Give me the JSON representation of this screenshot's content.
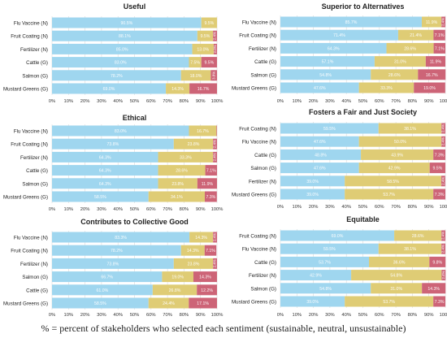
{
  "caption": "% = percent of stakeholders who selected each sentiment (sustainable, neutral, unsustainable)",
  "colors": {
    "sustainable": "#9fd6ef",
    "neutral": "#dfcc75",
    "unsustainable": "#cd6477"
  },
  "chart_data": [
    {
      "type": "bar",
      "orientation": "horizontal",
      "stacked": true,
      "title": "Useful",
      "categories": [
        "Flu Vaccine (N)",
        "Fruit Coating (N)",
        "Fertilizer (N)",
        "Cattle (G)",
        "Salmon (G)",
        "Mustard Greens (G)"
      ],
      "series": [
        {
          "values": [
            90.5,
            88.1,
            85.0,
            83.0,
            78.2,
            69.0
          ]
        },
        {
          "values": [
            9.5,
            9.5,
            13.0,
            7.5,
            18.0,
            14.3
          ]
        },
        {
          "values": [
            0,
            2.4,
            2.0,
            9.5,
            3.8,
            16.7
          ]
        }
      ],
      "segment_labels": [
        [
          "90.5%",
          "9.5%",
          ""
        ],
        [
          "88.1%",
          "9.5%",
          "2.4%"
        ],
        [
          "85.0%",
          "13.0%",
          "2.0%"
        ],
        [
          "83.0%",
          "7.5%",
          "9.5%"
        ],
        [
          "78.2%",
          "18.0%",
          "3.8%"
        ],
        [
          "69.0%",
          "14.3%",
          "16.7%"
        ]
      ],
      "xlim": [
        0,
        100
      ],
      "xticks": [
        "0%",
        "10%",
        "20%",
        "30%",
        "40%",
        "50%",
        "60%",
        "70%",
        "80%",
        "90%",
        "100%"
      ]
    },
    {
      "type": "bar",
      "orientation": "horizontal",
      "stacked": true,
      "title": "Superior to Alternatives",
      "categories": [
        "Flu Vaccine (N)",
        "Fruit Coating (N)",
        "Fertilizer (N)",
        "Cattle (G)",
        "Salmon (G)",
        "Mustard Greens (G)"
      ],
      "series": [
        {
          "values": [
            85.7,
            71.4,
            64.3,
            57.1,
            54.8,
            47.6
          ]
        },
        {
          "values": [
            11.9,
            21.4,
            28.6,
            31.0,
            28.6,
            33.3
          ]
        },
        {
          "values": [
            2.4,
            7.1,
            7.1,
            11.9,
            16.7,
            19.0
          ]
        }
      ],
      "segment_labels": [
        [
          "85.7%",
          "11.9%",
          "2.4%"
        ],
        [
          "71.4%",
          "21.4%",
          "7.1%"
        ],
        [
          "64.3%",
          "28.6%",
          "7.1%"
        ],
        [
          "57.1%",
          "31.0%",
          "11.9%"
        ],
        [
          "54.8%",
          "28.6%",
          "16.7%"
        ],
        [
          "47.6%",
          "33.3%",
          "19.0%"
        ]
      ],
      "xlim": [
        0,
        100
      ],
      "xticks": [
        "0%",
        "10%",
        "20%",
        "30%",
        "40%",
        "50%",
        "60%",
        "70%",
        "80%",
        "90%",
        "100%"
      ]
    },
    {
      "type": "bar",
      "orientation": "horizontal",
      "stacked": true,
      "title": "Ethical",
      "categories": [
        "Flu Vaccine (N)",
        "Fruit Coating (N)",
        "Fertilizer (N)",
        "Cattle (G)",
        "Salmon (G)",
        "Mustard Greens (G)"
      ],
      "series": [
        {
          "values": [
            83.0,
            73.8,
            64.3,
            64.3,
            64.3,
            58.5
          ]
        },
        {
          "values": [
            16.7,
            23.8,
            33.3,
            28.6,
            23.8,
            34.1
          ]
        },
        {
          "values": [
            0.3,
            2.4,
            2.4,
            7.1,
            11.9,
            7.3
          ]
        }
      ],
      "segment_labels": [
        [
          "83.0%",
          "16.7%",
          ""
        ],
        [
          "73.8%",
          "23.8%",
          "2.4%"
        ],
        [
          "64.3%",
          "33.3%",
          "2.4%"
        ],
        [
          "64.3%",
          "28.6%",
          "7.1%"
        ],
        [
          "64.3%",
          "23.8%",
          "11.9%"
        ],
        [
          "58.5%",
          "34.1%",
          "7.3%"
        ]
      ],
      "xlim": [
        0,
        100
      ],
      "xticks": [
        "0%",
        "10%",
        "20%",
        "30%",
        "40%",
        "50%",
        "60%",
        "70%",
        "80%",
        "90%",
        "100%"
      ]
    },
    {
      "type": "bar",
      "orientation": "horizontal",
      "stacked": true,
      "title": "Fosters a Fair and Just Society",
      "categories": [
        "Fruit Coating (N)",
        "Flu Vaccine (N)",
        "Cattle (G)",
        "Salmon (G)",
        "Fertilizer (N)",
        "Mustard Greens (G)"
      ],
      "series": [
        {
          "values": [
            59.5,
            47.6,
            48.8,
            47.6,
            39.0,
            39.0
          ]
        },
        {
          "values": [
            38.1,
            50.0,
            43.9,
            42.9,
            58.5,
            53.7
          ]
        },
        {
          "values": [
            2.4,
            2.4,
            7.3,
            9.5,
            2.4,
            7.3
          ]
        }
      ],
      "segment_labels": [
        [
          "59.5%",
          "38.1%",
          "2.4%"
        ],
        [
          "47.6%",
          "50.0%",
          "2.4%"
        ],
        [
          "48.8%",
          "43.9%",
          "7.3%"
        ],
        [
          "47.6%",
          "42.9%",
          "9.5%"
        ],
        [
          "39.0%",
          "58.5%",
          "2.4%"
        ],
        [
          "39.0%",
          "53.7%",
          "7.3%"
        ]
      ],
      "xlim": [
        0,
        100
      ],
      "xticks": [
        "0%",
        "10%",
        "20%",
        "30%",
        "40%",
        "50%",
        "60%",
        "70%",
        "80%",
        "90%",
        "100%"
      ]
    },
    {
      "type": "bar",
      "orientation": "horizontal",
      "stacked": true,
      "title": "Contributes to Collective Good",
      "categories": [
        "Flu Vaccine (N)",
        "Fruit Coating (N)",
        "Fertilizer (N)",
        "Salmon (G)",
        "Cattle (G)",
        "Mustard Greens (G)"
      ],
      "series": [
        {
          "values": [
            83.3,
            78.2,
            73.8,
            66.7,
            61.0,
            58.5
          ]
        },
        {
          "values": [
            14.3,
            14.3,
            23.8,
            19.0,
            26.8,
            24.4
          ]
        },
        {
          "values": [
            2.4,
            7.1,
            2.4,
            14.3,
            12.2,
            17.1
          ]
        }
      ],
      "segment_labels": [
        [
          "83.3%",
          "14.3%",
          "2.4%"
        ],
        [
          "78.2%",
          "14.3%",
          "7.1%"
        ],
        [
          "73.8%",
          "23.8%",
          "2.4%"
        ],
        [
          "66.7%",
          "19.0%",
          "14.3%"
        ],
        [
          "61.0%",
          "26.8%",
          "12.2%"
        ],
        [
          "58.5%",
          "24.4%",
          "17.1%"
        ]
      ],
      "xlim": [
        0,
        100
      ],
      "xticks": [
        "0%",
        "10%",
        "20%",
        "30%",
        "40%",
        "50%",
        "60%",
        "70%",
        "80%",
        "90%",
        "100%"
      ]
    },
    {
      "type": "bar",
      "orientation": "horizontal",
      "stacked": true,
      "title": "Equitable",
      "categories": [
        "Fruit Coating (N)",
        "Flu Vaccine (N)",
        "Cattle (G)",
        "Fertilizer (N)",
        "Salmon (G)",
        "Mustard Greens (G)"
      ],
      "series": [
        {
          "values": [
            69.0,
            59.5,
            53.7,
            42.9,
            54.8,
            39.0
          ]
        },
        {
          "values": [
            28.6,
            38.1,
            36.6,
            54.8,
            31.0,
            53.7
          ]
        },
        {
          "values": [
            2.4,
            2.4,
            9.8,
            2.4,
            14.3,
            7.3
          ]
        }
      ],
      "segment_labels": [
        [
          "69.0%",
          "28.6%",
          "2.4%"
        ],
        [
          "59.5%",
          "38.1%",
          "2.4%"
        ],
        [
          "53.7%",
          "36.6%",
          "9.8%"
        ],
        [
          "42.9%",
          "54.8%",
          "2.4%"
        ],
        [
          "54.8%",
          "31.0%",
          "14.3%"
        ],
        [
          "39.0%",
          "53.7%",
          "7.3%"
        ]
      ],
      "xlim": [
        0,
        100
      ],
      "xticks": [
        "0%",
        "10%",
        "20%",
        "30%",
        "40%",
        "50%",
        "60%",
        "70%",
        "80%",
        "90%",
        "100%"
      ]
    }
  ]
}
